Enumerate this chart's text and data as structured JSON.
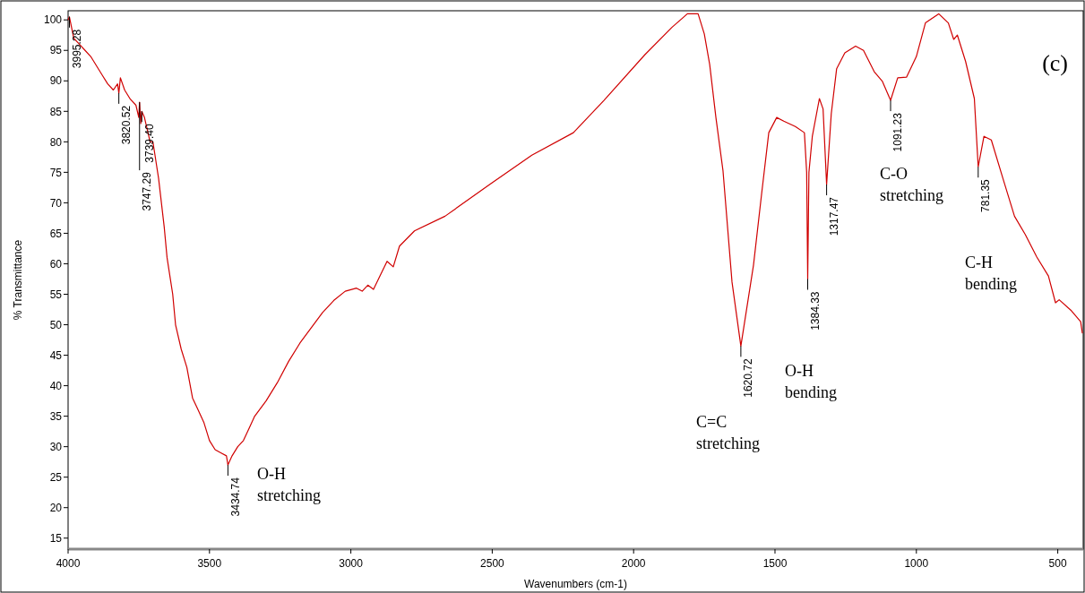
{
  "chart_data": {
    "type": "line",
    "xlabel": "Wavenumbers (cm-1)",
    "ylabel": "% Transmittance",
    "xlim": [
      4000,
      410
    ],
    "xticks": [
      4000,
      3500,
      3000,
      2500,
      2000,
      1500,
      1000,
      500
    ],
    "ylim": [
      13.2,
      101.5
    ],
    "yticks": [
      15,
      20,
      25,
      30,
      35,
      40,
      45,
      50,
      55,
      60,
      65,
      70,
      75,
      80,
      85,
      90,
      95,
      100
    ],
    "grid": false,
    "line_style": "solid",
    "marker": "none",
    "series": [
      {
        "color": "#d00000",
        "x": [
          4000,
          3995.28,
          3980,
          3960,
          3940,
          3920,
          3900,
          3880,
          3860,
          3840,
          3825,
          3820.52,
          3815,
          3800,
          3780,
          3760,
          3750,
          3747.29,
          3743,
          3739.4,
          3730,
          3720,
          3710,
          3700,
          3690,
          3680,
          3670,
          3660,
          3650,
          3640,
          3630,
          3620,
          3600,
          3580,
          3560,
          3540,
          3520,
          3500,
          3480,
          3460,
          3440,
          3434.74,
          3420,
          3400,
          3380,
          3360,
          3340,
          3300,
          3260,
          3220,
          3180,
          3140,
          3100,
          3060,
          3020,
          2980,
          2960,
          2940,
          2920,
          2872,
          2850,
          2828,
          2775,
          2667,
          2506,
          2360,
          2213,
          2105,
          1960,
          1864,
          1810,
          1772,
          1750,
          1731,
          1709,
          1684,
          1652,
          1620.72,
          1576,
          1547,
          1522,
          1494,
          1469,
          1428,
          1396,
          1388,
          1384.33,
          1380,
          1368,
          1343,
          1330,
          1317.47,
          1301,
          1282,
          1253,
          1215,
          1187,
          1149,
          1120,
          1091.23,
          1066,
          1035,
          1000,
          968,
          921,
          887,
          868,
          855,
          826,
          795,
          781.35,
          761,
          735,
          694,
          653,
          615,
          574,
          533,
          508,
          495,
          454,
          419,
          413
        ],
        "values": [
          100,
          100.5,
          97,
          96,
          95,
          94,
          92.5,
          91,
          89.5,
          88.5,
          89.5,
          88,
          90.5,
          88.5,
          87,
          86,
          84,
          86.5,
          83,
          85,
          84,
          82,
          80,
          80,
          77,
          74,
          70,
          66,
          61,
          58,
          55,
          50,
          46,
          43,
          38,
          36,
          34,
          31,
          29.5,
          29,
          28.5,
          27,
          28.5,
          30,
          31,
          33,
          35,
          37.5,
          40.5,
          44,
          47,
          49.5,
          52,
          54,
          55.5,
          56,
          55.5,
          56.5,
          55.8,
          60.4,
          59.5,
          62.9,
          65.4,
          67.8,
          73.1,
          77.8,
          81.5,
          86.8,
          94.3,
          98.8,
          101,
          101,
          97.7,
          92.7,
          84,
          75.3,
          57,
          46.5,
          59.8,
          71.6,
          81.5,
          84,
          83.4,
          82.5,
          81.5,
          75,
          57.5,
          75,
          80.9,
          87.1,
          85.4,
          73,
          84.6,
          92,
          94.6,
          95.7,
          95,
          91.5,
          89.9,
          86.8,
          90.5,
          90.6,
          94,
          99.5,
          101,
          99.5,
          96.8,
          97.5,
          93.2,
          87.1,
          75.9,
          80.9,
          80.3,
          74,
          67.8,
          64.8,
          61.1,
          58,
          53.6,
          54.1,
          52.4,
          50.5,
          48.6
        ]
      }
    ],
    "annotations": [
      "(c)",
      {
        "text": "3995.28",
        "x": 3995.28,
        "y": 100.5
      },
      {
        "text": "3820.52",
        "x": 3820.52,
        "y": 88
      },
      {
        "text": "3747.29",
        "x": 3747.29,
        "y": 86.5
      },
      {
        "text": "3739.40",
        "x": 3739.4,
        "y": 85
      },
      {
        "text": "3434.74",
        "x": 3434.74,
        "y": 27
      },
      {
        "text": "1620.72",
        "x": 1620.72,
        "y": 46.5
      },
      {
        "text": "1384.33",
        "x": 1384.33,
        "y": 57.5
      },
      {
        "text": "1317.47",
        "x": 1317.47,
        "y": 73
      },
      {
        "text": "1091.23",
        "x": 1091.23,
        "y": 86.8
      },
      {
        "text": "781.35",
        "x": 781.35,
        "y": 75.9
      },
      "O-H stretching",
      "C=C stretching",
      "O-H bending",
      "C-O stretching",
      "C-H bending"
    ]
  }
}
